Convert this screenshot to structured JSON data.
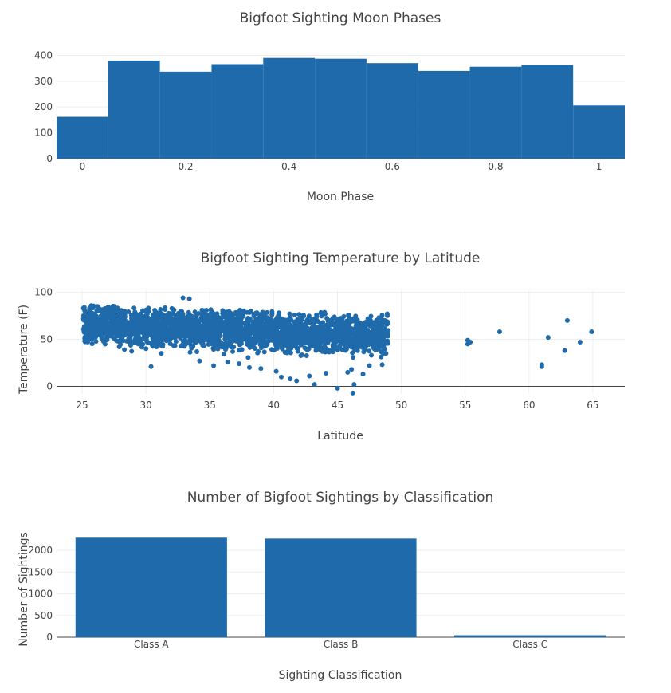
{
  "colors": {
    "mark": "#1f6aab",
    "text": "#444444",
    "grid": "#eeeeee",
    "zeroline": "#444444"
  },
  "chart_data": [
    {
      "type": "bar",
      "subtype": "histogram",
      "title": "Bigfoot Sighting Moon Phases",
      "xlabel": "Moon Phase",
      "ylabel": "",
      "xlim": [
        -0.05,
        1.05
      ],
      "ylim": [
        0,
        420
      ],
      "xticks": [
        0,
        0.2,
        0.4,
        0.6,
        0.8,
        1
      ],
      "xtick_labels": [
        "0",
        "0.2",
        "0.4",
        "0.6",
        "0.8",
        "1"
      ],
      "yticks": [
        0,
        100,
        200,
        300,
        400
      ],
      "ytick_labels": [
        "0",
        "100",
        "200",
        "300",
        "400"
      ],
      "bins": [
        {
          "start": -0.05,
          "end": 0.05,
          "count": 162
        },
        {
          "start": 0.05,
          "end": 0.15,
          "count": 380
        },
        {
          "start": 0.15,
          "end": 0.25,
          "count": 337
        },
        {
          "start": 0.25,
          "end": 0.35,
          "count": 366
        },
        {
          "start": 0.35,
          "end": 0.45,
          "count": 390
        },
        {
          "start": 0.45,
          "end": 0.55,
          "count": 387
        },
        {
          "start": 0.55,
          "end": 0.65,
          "count": 370
        },
        {
          "start": 0.65,
          "end": 0.75,
          "count": 340
        },
        {
          "start": 0.75,
          "end": 0.85,
          "count": 356
        },
        {
          "start": 0.85,
          "end": 0.95,
          "count": 363
        },
        {
          "start": 0.95,
          "end": 1.05,
          "count": 206
        }
      ],
      "grid": true
    },
    {
      "type": "scatter",
      "title": "Bigfoot Sighting Temperature by Latitude",
      "xlabel": "Latitude",
      "ylabel": "Temperature (F)",
      "xlim": [
        23,
        67.5
      ],
      "ylim": [
        -8,
        102
      ],
      "xticks": [
        25,
        30,
        35,
        40,
        45,
        50,
        55,
        60,
        65
      ],
      "xtick_labels": [
        "25",
        "30",
        "35",
        "40",
        "45",
        "50",
        "55",
        "60",
        "65"
      ],
      "yticks": [
        0,
        50,
        100
      ],
      "ytick_labels": [
        "0",
        "50",
        "100"
      ],
      "approx_main_cluster": {
        "lat_min": 25.1,
        "lat_max": 49.0,
        "temp_min": -5,
        "temp_max": 95,
        "approx_count": 2600
      },
      "points": [
        {
          "x": 25.1,
          "y": 83
        },
        {
          "x": 25.1,
          "y": 72
        },
        {
          "x": 26.9,
          "y": 55
        },
        {
          "x": 27.5,
          "y": 51
        },
        {
          "x": 28.5,
          "y": 48
        },
        {
          "x": 29.4,
          "y": 45
        },
        {
          "x": 30.0,
          "y": 40
        },
        {
          "x": 31.2,
          "y": 35
        },
        {
          "x": 30.4,
          "y": 21
        },
        {
          "x": 32.9,
          "y": 94
        },
        {
          "x": 33.4,
          "y": 93
        },
        {
          "x": 34.2,
          "y": 27
        },
        {
          "x": 35.3,
          "y": 22
        },
        {
          "x": 36.4,
          "y": 26
        },
        {
          "x": 37.3,
          "y": 24
        },
        {
          "x": 38.1,
          "y": 20
        },
        {
          "x": 39.0,
          "y": 19
        },
        {
          "x": 40.2,
          "y": 16
        },
        {
          "x": 40.6,
          "y": 10
        },
        {
          "x": 41.3,
          "y": 8
        },
        {
          "x": 41.8,
          "y": 6
        },
        {
          "x": 42.8,
          "y": 11
        },
        {
          "x": 43.2,
          "y": 2
        },
        {
          "x": 44.1,
          "y": 14
        },
        {
          "x": 45.0,
          "y": -2
        },
        {
          "x": 45.8,
          "y": 15
        },
        {
          "x": 46.1,
          "y": 18
        },
        {
          "x": 46.3,
          "y": 2
        },
        {
          "x": 47.0,
          "y": 13
        },
        {
          "x": 47.5,
          "y": 22
        },
        {
          "x": 48.5,
          "y": 23
        },
        {
          "x": 46.2,
          "y": -7
        },
        {
          "x": 48.9,
          "y": 77
        },
        {
          "x": 48.7,
          "y": 70
        },
        {
          "x": 48.8,
          "y": 35
        },
        {
          "x": 55.2,
          "y": 49
        },
        {
          "x": 55.2,
          "y": 45
        },
        {
          "x": 55.4,
          "y": 47
        },
        {
          "x": 57.7,
          "y": 58
        },
        {
          "x": 61.0,
          "y": 21
        },
        {
          "x": 61.0,
          "y": 23
        },
        {
          "x": 61.5,
          "y": 52
        },
        {
          "x": 62.8,
          "y": 38
        },
        {
          "x": 63.0,
          "y": 70
        },
        {
          "x": 64.0,
          "y": 47
        },
        {
          "x": 64.9,
          "y": 58
        }
      ],
      "grid": true
    },
    {
      "type": "bar",
      "title": "Number of Bigfoot Sightings by Classification",
      "xlabel": "Sighting Classification",
      "ylabel": "Number of Sightings",
      "categories": [
        "Class A",
        "Class B",
        "Class C"
      ],
      "values": [
        2290,
        2270,
        45
      ],
      "ylim": [
        0,
        2460
      ],
      "yticks": [
        0,
        500,
        1000,
        1500,
        2000
      ],
      "ytick_labels": [
        "0",
        "500",
        "1000",
        "1500",
        "2000"
      ],
      "grid": true
    }
  ]
}
